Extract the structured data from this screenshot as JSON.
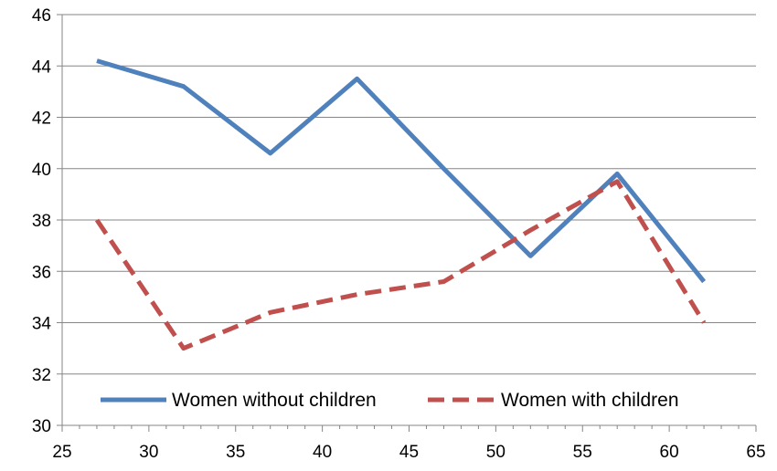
{
  "chart_data": {
    "type": "line",
    "title": "",
    "xlabel": "",
    "ylabel": "",
    "xlim": [
      25,
      65
    ],
    "ylim": [
      30,
      46
    ],
    "xticks": [
      25,
      30,
      35,
      40,
      45,
      50,
      55,
      60,
      65
    ],
    "yticks": [
      30,
      32,
      34,
      36,
      38,
      40,
      42,
      44,
      46
    ],
    "grid": "horizontal",
    "legend_position": "bottom-inside",
    "series": [
      {
        "name": "Women without children",
        "color": "#4f81bd",
        "style": "solid",
        "x": [
          27,
          32,
          37,
          42,
          47,
          52,
          57,
          62
        ],
        "y": [
          44.2,
          43.2,
          40.6,
          43.5,
          40.0,
          36.6,
          39.8,
          35.6
        ]
      },
      {
        "name": "Women with children",
        "color": "#c0504d",
        "style": "dashed",
        "x": [
          27,
          32,
          37,
          42,
          47,
          52,
          57,
          62
        ],
        "y": [
          38.0,
          33.0,
          34.4,
          35.1,
          35.6,
          37.6,
          39.5,
          34.0
        ]
      }
    ]
  }
}
